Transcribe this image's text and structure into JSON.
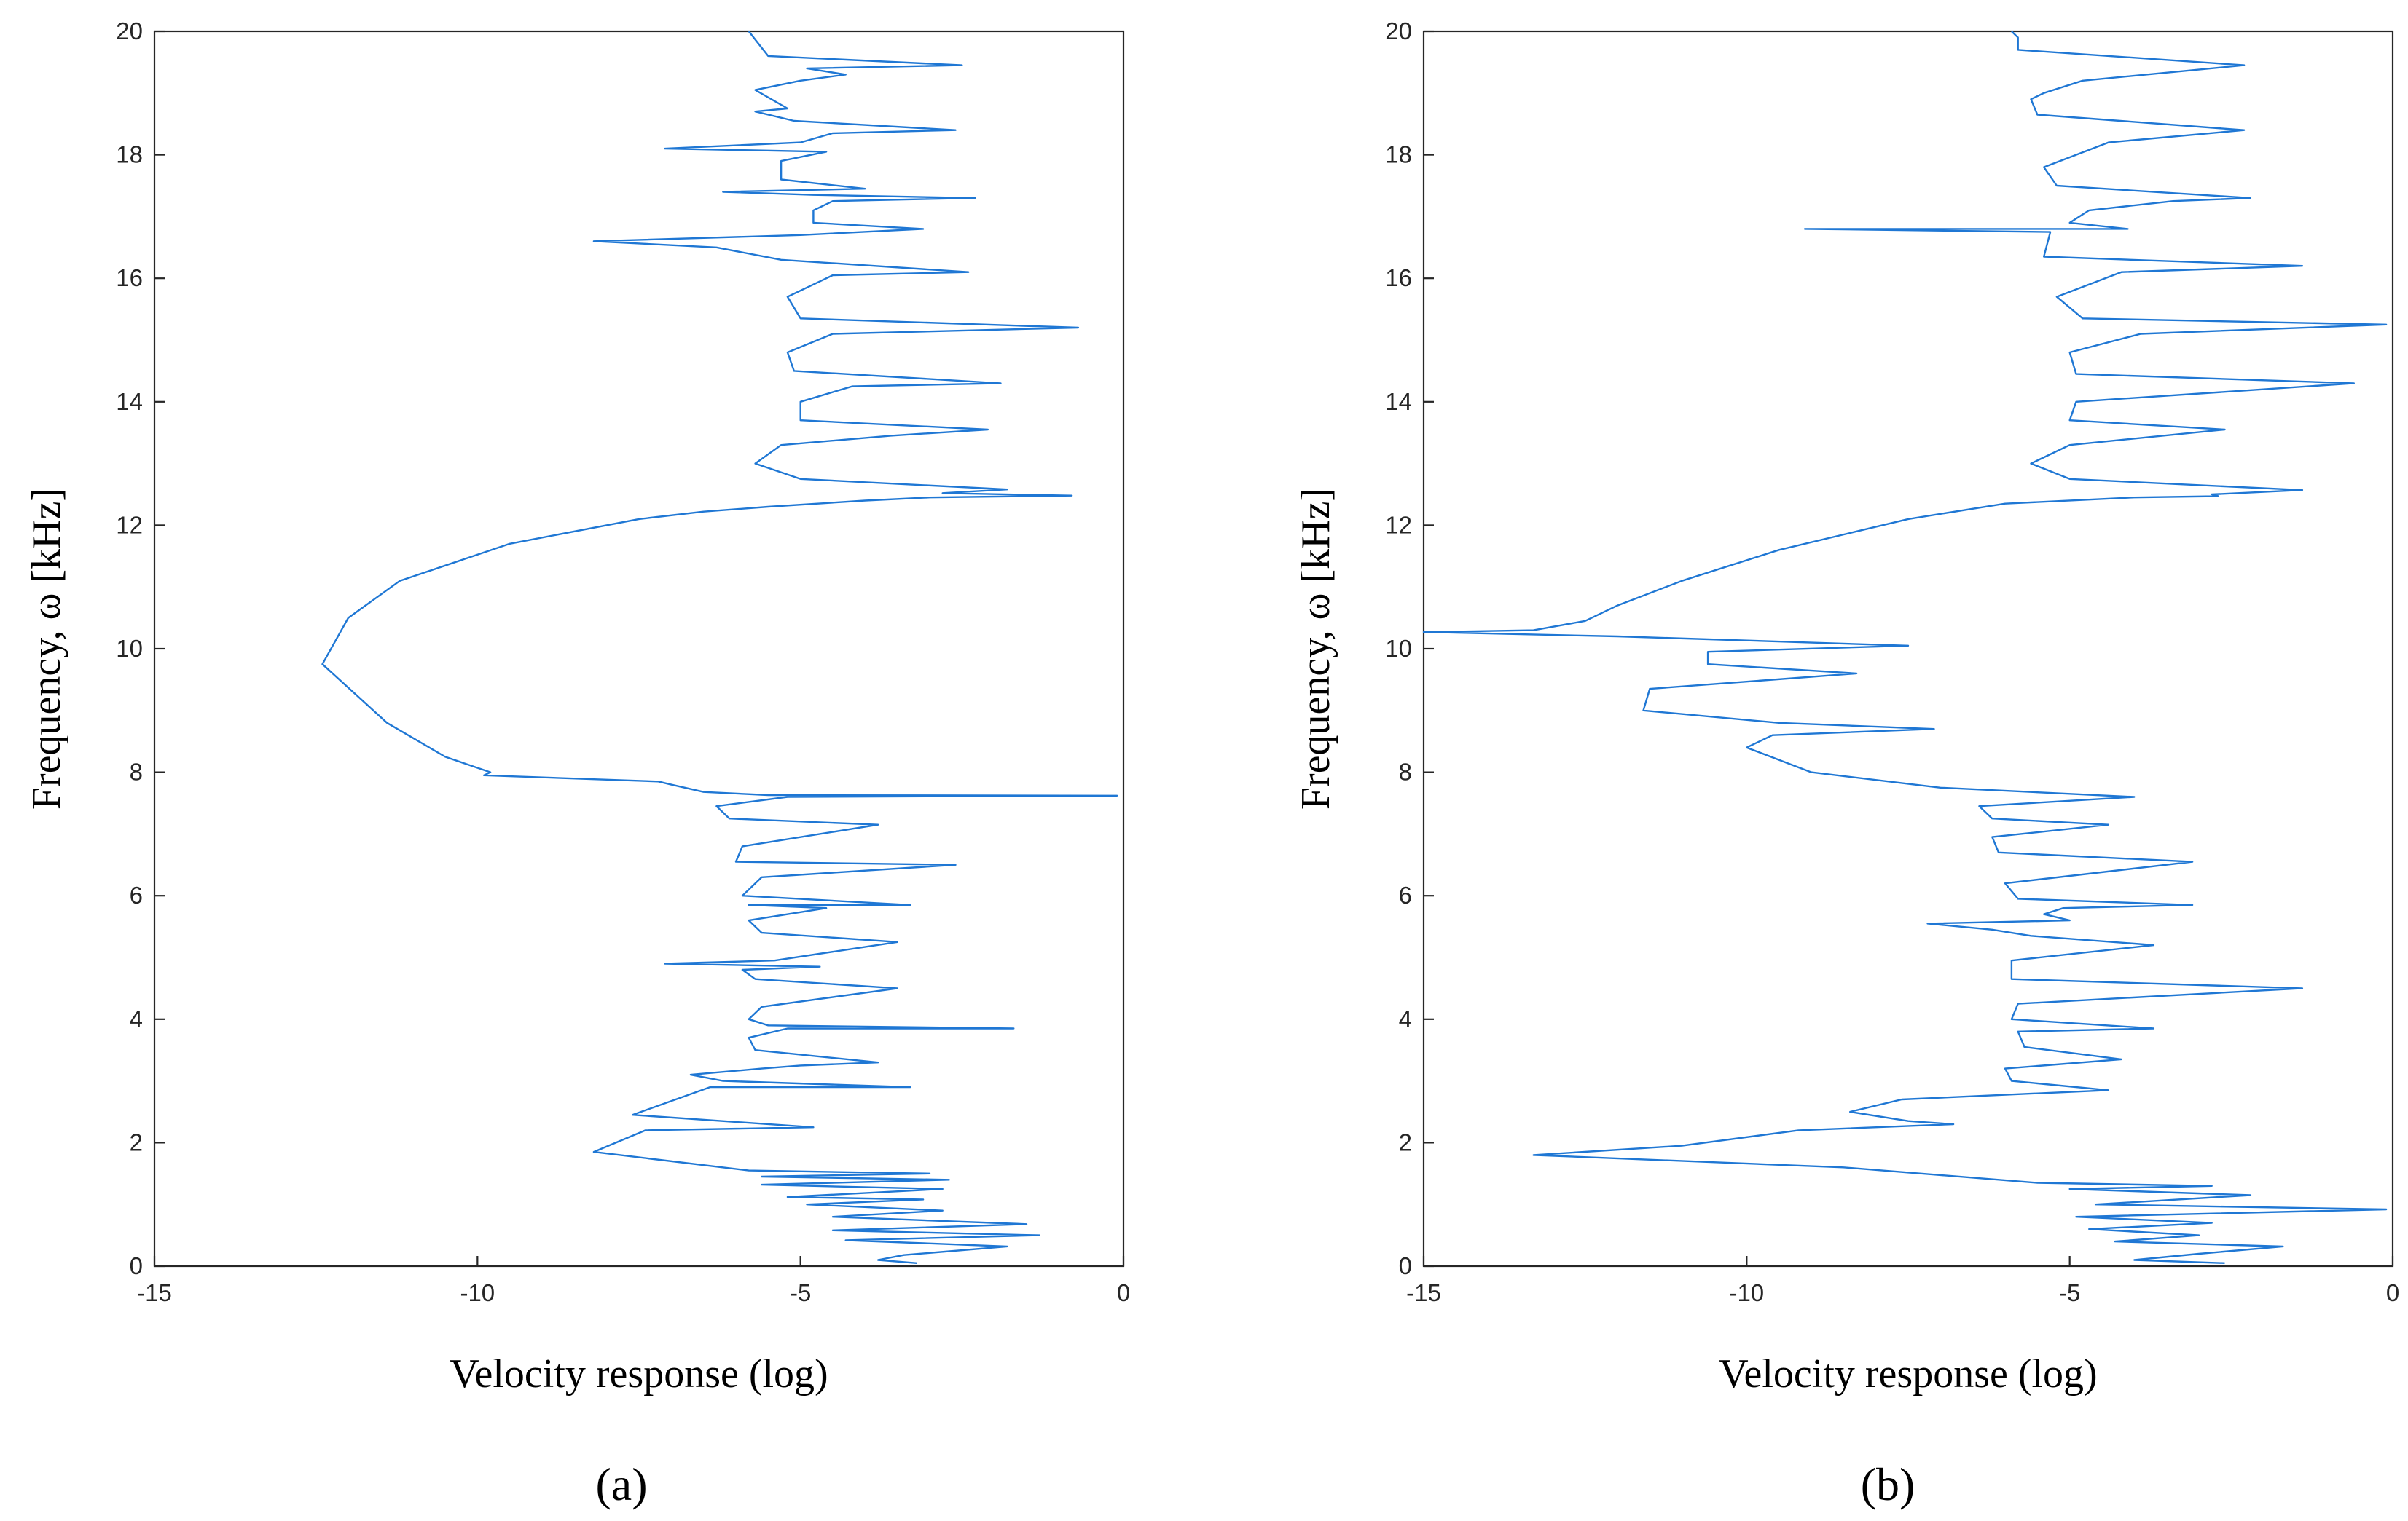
{
  "chart_data": [
    {
      "type": "line",
      "panel": "a",
      "panel_label": "(a)",
      "xlabel": "Velocity response (log)",
      "ylabel": "Frequency, ω [kHz]",
      "xlim": [
        -15,
        0
      ],
      "ylim": [
        0,
        20
      ],
      "xticks": [
        -15,
        -10,
        -5,
        0
      ],
      "yticks": [
        0,
        2,
        4,
        6,
        8,
        10,
        12,
        14,
        16,
        18,
        20
      ],
      "x_tick_labels": [
        "-15",
        "-10",
        "-5",
        "0"
      ],
      "y_tick_labels": [
        "0",
        "2",
        "4",
        "6",
        "8",
        "10",
        "12",
        "14",
        "16",
        "18",
        "20"
      ],
      "grid": false,
      "color": "#1f77d4",
      "series": [
        {
          "points": [
            [
              -3.2,
              0.05
            ],
            [
              -3.8,
              0.1
            ],
            [
              -3.4,
              0.18
            ],
            [
              -1.8,
              0.32
            ],
            [
              -4.3,
              0.42
            ],
            [
              -1.3,
              0.5
            ],
            [
              -4.5,
              0.58
            ],
            [
              -1.5,
              0.68
            ],
            [
              -4.5,
              0.8
            ],
            [
              -2.8,
              0.9
            ],
            [
              -4.9,
              1.0
            ],
            [
              -3.1,
              1.08
            ],
            [
              -5.2,
              1.12
            ],
            [
              -2.8,
              1.25
            ],
            [
              -5.6,
              1.32
            ],
            [
              -2.7,
              1.4
            ],
            [
              -5.6,
              1.45
            ],
            [
              -3.0,
              1.5
            ],
            [
              -5.8,
              1.55
            ],
            [
              -8.2,
              1.85
            ],
            [
              -7.4,
              2.2
            ],
            [
              -4.8,
              2.25
            ],
            [
              -7.6,
              2.45
            ],
            [
              -6.4,
              2.9
            ],
            [
              -3.3,
              2.9
            ],
            [
              -6.2,
              3.0
            ],
            [
              -6.7,
              3.1
            ],
            [
              -5.6,
              3.2
            ],
            [
              -5.0,
              3.25
            ],
            [
              -3.8,
              3.3
            ],
            [
              -5.7,
              3.5
            ],
            [
              -5.8,
              3.7
            ],
            [
              -5.2,
              3.85
            ],
            [
              -1.7,
              3.85
            ],
            [
              -5.5,
              3.9
            ],
            [
              -5.8,
              4.0
            ],
            [
              -5.6,
              4.2
            ],
            [
              -3.5,
              4.5
            ],
            [
              -5.7,
              4.65
            ],
            [
              -5.9,
              4.8
            ],
            [
              -4.7,
              4.85
            ],
            [
              -7.1,
              4.9
            ],
            [
              -5.4,
              4.95
            ],
            [
              -3.5,
              5.25
            ],
            [
              -5.6,
              5.4
            ],
            [
              -5.8,
              5.6
            ],
            [
              -4.6,
              5.8
            ],
            [
              -5.8,
              5.85
            ],
            [
              -3.3,
              5.85
            ],
            [
              -5.9,
              6.0
            ],
            [
              -5.6,
              6.3
            ],
            [
              -2.6,
              6.5
            ],
            [
              -6.0,
              6.55
            ],
            [
              -5.9,
              6.8
            ],
            [
              -3.8,
              7.15
            ],
            [
              -6.1,
              7.25
            ],
            [
              -6.3,
              7.45
            ],
            [
              -5.2,
              7.6
            ],
            [
              -0.1,
              7.62
            ],
            [
              -5.5,
              7.63
            ],
            [
              -6.5,
              7.68
            ],
            [
              -7.0,
              7.8
            ],
            [
              -7.2,
              7.85
            ],
            [
              -9.9,
              7.95
            ],
            [
              -9.8,
              8.0
            ],
            [
              -10.5,
              8.25
            ],
            [
              -11.4,
              8.8
            ],
            [
              -12.4,
              9.75
            ],
            [
              -12.0,
              10.5
            ],
            [
              -11.2,
              11.1
            ],
            [
              -9.5,
              11.7
            ],
            [
              -7.5,
              12.1
            ],
            [
              -6.5,
              12.22
            ],
            [
              -5.5,
              12.3
            ],
            [
              -4.0,
              12.4
            ],
            [
              -3.0,
              12.45
            ],
            [
              -0.8,
              12.48
            ],
            [
              -2.8,
              12.52
            ],
            [
              -1.8,
              12.58
            ],
            [
              -5.0,
              12.75
            ],
            [
              -5.7,
              13.0
            ],
            [
              -5.3,
              13.3
            ],
            [
              -3.6,
              13.45
            ],
            [
              -2.1,
              13.55
            ],
            [
              -5.0,
              13.7
            ],
            [
              -5.0,
              14.0
            ],
            [
              -4.2,
              14.25
            ],
            [
              -1.9,
              14.3
            ],
            [
              -5.1,
              14.5
            ],
            [
              -5.2,
              14.8
            ],
            [
              -4.5,
              15.1
            ],
            [
              -0.7,
              15.2
            ],
            [
              -5.0,
              15.35
            ],
            [
              -5.2,
              15.7
            ],
            [
              -4.5,
              16.05
            ],
            [
              -2.4,
              16.1
            ],
            [
              -5.3,
              16.3
            ],
            [
              -6.3,
              16.5
            ],
            [
              -8.2,
              16.6
            ],
            [
              -5.0,
              16.7
            ],
            [
              -3.1,
              16.8
            ],
            [
              -4.8,
              16.9
            ],
            [
              -4.8,
              17.1
            ],
            [
              -4.5,
              17.25
            ],
            [
              -2.3,
              17.3
            ],
            [
              -4.8,
              17.35
            ],
            [
              -6.2,
              17.4
            ],
            [
              -4.0,
              17.45
            ],
            [
              -5.3,
              17.6
            ],
            [
              -5.3,
              17.9
            ],
            [
              -4.6,
              18.05
            ],
            [
              -7.1,
              18.1
            ],
            [
              -5.0,
              18.2
            ],
            [
              -4.5,
              18.35
            ],
            [
              -2.6,
              18.4
            ],
            [
              -5.1,
              18.55
            ],
            [
              -5.7,
              18.7
            ],
            [
              -5.2,
              18.75
            ],
            [
              -5.7,
              19.05
            ],
            [
              -5.0,
              19.2
            ],
            [
              -4.3,
              19.3
            ],
            [
              -4.9,
              19.4
            ],
            [
              -2.5,
              19.45
            ],
            [
              -5.5,
              19.6
            ],
            [
              -5.8,
              20.0
            ]
          ]
        }
      ]
    },
    {
      "type": "line",
      "panel": "b",
      "panel_label": "(b)",
      "xlabel": "Velocity response (log)",
      "ylabel": "Frequency, ω [kHz]",
      "xlim": [
        -15,
        0
      ],
      "ylim": [
        0,
        20
      ],
      "xticks": [
        -15,
        -10,
        -5,
        0
      ],
      "yticks": [
        0,
        2,
        4,
        6,
        8,
        10,
        12,
        14,
        16,
        18,
        20
      ],
      "x_tick_labels": [
        "-15",
        "-10",
        "-5",
        "0"
      ],
      "y_tick_labels": [
        "0",
        "2",
        "4",
        "6",
        "8",
        "10",
        "12",
        "14",
        "16",
        "18",
        "20"
      ],
      "grid": false,
      "color": "#1f77d4",
      "series": [
        {
          "points": [
            [
              -2.6,
              0.05
            ],
            [
              -4.0,
              0.1
            ],
            [
              -3.0,
              0.2
            ],
            [
              -1.7,
              0.32
            ],
            [
              -4.3,
              0.4
            ],
            [
              -3.0,
              0.5
            ],
            [
              -4.7,
              0.6
            ],
            [
              -2.8,
              0.7
            ],
            [
              -4.9,
              0.8
            ],
            [
              -0.1,
              0.92
            ],
            [
              -4.6,
              1.0
            ],
            [
              -2.2,
              1.15
            ],
            [
              -5.0,
              1.25
            ],
            [
              -2.8,
              1.3
            ],
            [
              -5.5,
              1.35
            ],
            [
              -8.5,
              1.6
            ],
            [
              -13.3,
              1.8
            ],
            [
              -11.0,
              1.95
            ],
            [
              -9.2,
              2.2
            ],
            [
              -6.8,
              2.3
            ],
            [
              -7.5,
              2.35
            ],
            [
              -8.4,
              2.5
            ],
            [
              -7.6,
              2.7
            ],
            [
              -4.4,
              2.85
            ],
            [
              -5.9,
              3.0
            ],
            [
              -6.0,
              3.2
            ],
            [
              -4.2,
              3.35
            ],
            [
              -5.7,
              3.55
            ],
            [
              -5.8,
              3.8
            ],
            [
              -3.7,
              3.85
            ],
            [
              -5.9,
              4.0
            ],
            [
              -5.8,
              4.25
            ],
            [
              -1.4,
              4.5
            ],
            [
              -5.9,
              4.65
            ],
            [
              -5.9,
              4.95
            ],
            [
              -3.7,
              5.2
            ],
            [
              -5.6,
              5.35
            ],
            [
              -6.2,
              5.45
            ],
            [
              -7.2,
              5.55
            ],
            [
              -5.0,
              5.6
            ],
            [
              -5.4,
              5.7
            ],
            [
              -5.1,
              5.8
            ],
            [
              -3.1,
              5.85
            ],
            [
              -5.8,
              5.95
            ],
            [
              -6.0,
              6.2
            ],
            [
              -3.1,
              6.55
            ],
            [
              -6.1,
              6.7
            ],
            [
              -6.2,
              6.95
            ],
            [
              -4.4,
              7.15
            ],
            [
              -6.2,
              7.25
            ],
            [
              -6.4,
              7.45
            ],
            [
              -4.0,
              7.6
            ],
            [
              -7.0,
              7.75
            ],
            [
              -9.0,
              8.0
            ],
            [
              -10.0,
              8.4
            ],
            [
              -9.6,
              8.6
            ],
            [
              -7.1,
              8.7
            ],
            [
              -9.5,
              8.8
            ],
            [
              -11.6,
              9.0
            ],
            [
              -11.5,
              9.35
            ],
            [
              -8.3,
              9.6
            ],
            [
              -10.6,
              9.75
            ],
            [
              -10.6,
              9.95
            ],
            [
              -7.5,
              10.05
            ],
            [
              -12.0,
              10.2
            ],
            [
              -15.0,
              10.27
            ],
            [
              -13.3,
              10.3
            ],
            [
              -12.5,
              10.45
            ],
            [
              -12.0,
              10.7
            ],
            [
              -11.0,
              11.1
            ],
            [
              -9.5,
              11.6
            ],
            [
              -7.5,
              12.1
            ],
            [
              -6.0,
              12.35
            ],
            [
              -4.0,
              12.45
            ],
            [
              -2.7,
              12.47
            ],
            [
              -2.8,
              12.5
            ],
            [
              -1.4,
              12.57
            ],
            [
              -5.0,
              12.75
            ],
            [
              -5.6,
              13.0
            ],
            [
              -5.0,
              13.3
            ],
            [
              -2.6,
              13.55
            ],
            [
              -5.0,
              13.7
            ],
            [
              -4.9,
              14.0
            ],
            [
              -0.6,
              14.3
            ],
            [
              -4.9,
              14.45
            ],
            [
              -5.0,
              14.8
            ],
            [
              -3.9,
              15.1
            ],
            [
              -0.1,
              15.25
            ],
            [
              -4.8,
              15.35
            ],
            [
              -5.2,
              15.7
            ],
            [
              -4.2,
              16.1
            ],
            [
              -1.4,
              16.2
            ],
            [
              -5.4,
              16.35
            ],
            [
              -5.3,
              16.75
            ],
            [
              -9.1,
              16.8
            ],
            [
              -4.1,
              16.8
            ],
            [
              -5.0,
              16.9
            ],
            [
              -4.7,
              17.1
            ],
            [
              -3.4,
              17.25
            ],
            [
              -2.2,
              17.3
            ],
            [
              -5.2,
              17.5
            ],
            [
              -5.4,
              17.8
            ],
            [
              -4.4,
              18.2
            ],
            [
              -2.3,
              18.4
            ],
            [
              -5.5,
              18.65
            ],
            [
              -5.6,
              18.9
            ],
            [
              -5.4,
              19.0
            ],
            [
              -4.8,
              19.2
            ],
            [
              -2.3,
              19.45
            ],
            [
              -5.8,
              19.7
            ],
            [
              -5.8,
              19.9
            ],
            [
              -5.9,
              20.0
            ]
          ]
        }
      ]
    }
  ]
}
